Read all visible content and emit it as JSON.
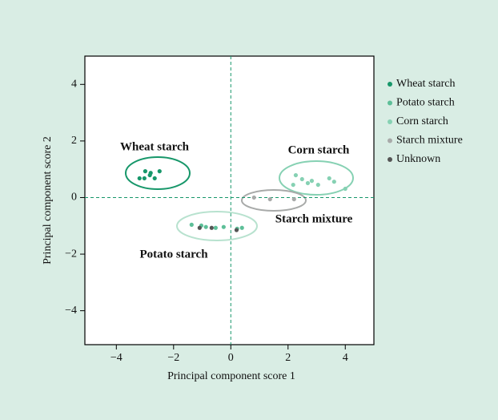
{
  "chart_data": {
    "type": "scatter",
    "xlabel": "Principal component score 1",
    "ylabel": "Principal component score 2",
    "xlim": [
      -5.1,
      5
    ],
    "ylim": [
      -5.2,
      5
    ],
    "xticks": [
      {
        "value": -4,
        "label": "−4"
      },
      {
        "value": -2,
        "label": "−2"
      },
      0,
      2,
      4
    ],
    "yticks": [
      {
        "value": -4,
        "label": "−4"
      },
      {
        "value": -2,
        "label": "−2"
      },
      0,
      2,
      4
    ],
    "legend": "right",
    "annotations": [
      "Wheat starch",
      "Corn starch",
      "Starch mixture",
      "Potato starch"
    ],
    "series": [
      {
        "name": "Wheat starch",
        "color": "#17976a",
        "x": [
          -3.19,
          -2.99,
          -2.8,
          -2.49,
          -3.02,
          -2.66,
          -2.83
        ],
        "values": [
          0.68,
          0.93,
          0.87,
          0.93,
          0.68,
          0.68,
          0.79
        ]
      },
      {
        "name": "Potato starch",
        "color": "#5dbf98",
        "x": [
          -1.37,
          -1.03,
          -0.87,
          -0.53,
          -0.25,
          0.22,
          0.39
        ],
        "values": [
          -0.96,
          -0.99,
          -1.04,
          -1.07,
          -1.04,
          -1.1,
          -1.07
        ]
      },
      {
        "name": "Corn starch",
        "color": "#86d1b3",
        "x": [
          2.27,
          2.49,
          2.69,
          2.83,
          3.05,
          3.44,
          3.61,
          4.0,
          2.18
        ],
        "values": [
          0.79,
          0.65,
          0.51,
          0.59,
          0.45,
          0.68,
          0.56,
          0.31,
          0.45
        ]
      },
      {
        "name": "Starch mixture",
        "color": "#a8aaa9",
        "x": [
          0.81,
          1.37,
          2.21
        ],
        "values": [
          0.0,
          -0.06,
          -0.06
        ]
      },
      {
        "name": "Unknown",
        "color": "#555555",
        "x": [
          -1.09,
          -0.67,
          0.2
        ],
        "values": [
          -1.07,
          -1.07,
          -1.15
        ]
      }
    ]
  }
}
